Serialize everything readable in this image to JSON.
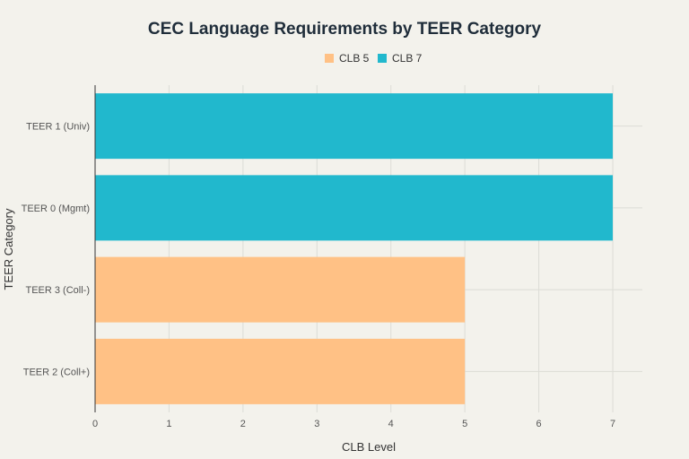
{
  "chart_data": {
    "type": "bar",
    "orientation": "horizontal",
    "title": "CEC Language Requirements by TEER Category",
    "xlabel": "CLB Level",
    "ylabel": "TEER Category",
    "xlim": [
      0,
      7.4
    ],
    "xticks": [
      "0",
      "1",
      "2",
      "3",
      "4",
      "5",
      "6",
      "7"
    ],
    "grid": true,
    "legend_position": "top-center",
    "categories": [
      "TEER 1 (Univ)",
      "TEER 0 (Mgmt)",
      "TEER 3 (Coll-)",
      "TEER 2 (Coll+)"
    ],
    "values": [
      7,
      7,
      5,
      5
    ],
    "bar_series": [
      "CLB 7",
      "CLB 7",
      "CLB 5",
      "CLB 5"
    ],
    "series": [
      {
        "name": "CLB 5",
        "color": "#ffc185"
      },
      {
        "name": "CLB 7",
        "color": "#21b8cd"
      }
    ]
  }
}
